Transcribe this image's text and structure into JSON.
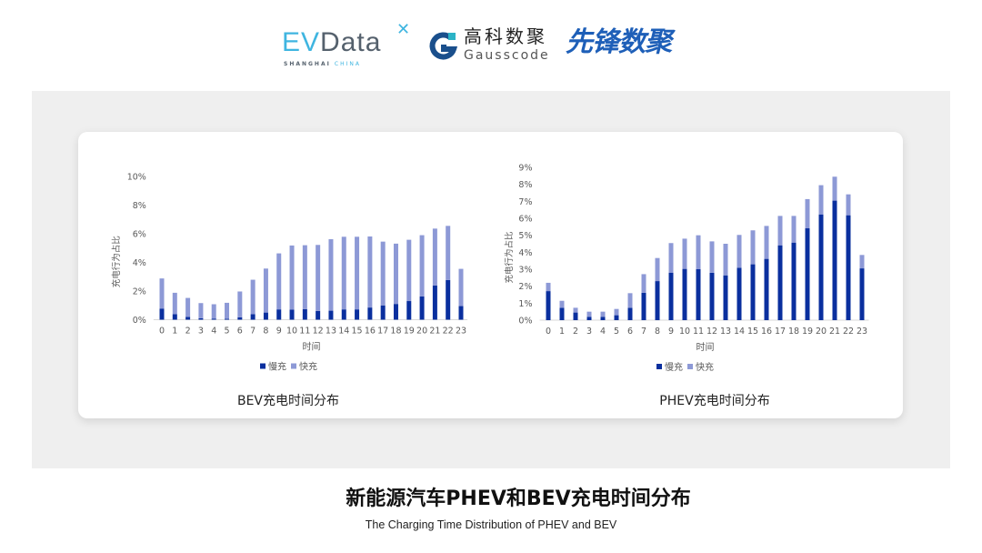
{
  "logos": {
    "evdata": {
      "text_a": "EV",
      "text_b": "Data",
      "sub_a": "SHANGHAI ",
      "sub_b": "CHINA"
    },
    "gausscode": {
      "cn": "高科数聚",
      "en": "Gausscode"
    },
    "xianfeng": {
      "cn": "先锋数聚"
    }
  },
  "colors": {
    "slow": "#0a2f9e",
    "fast": "#8d99d6",
    "panel": "#efefef",
    "axis_text": "#595959"
  },
  "footer": {
    "title": "新能源汽车PHEV和BEV充电时间分布",
    "subtitle": "The Charging Time Distribution of PHEV and BEV"
  },
  "chart_data": [
    {
      "type": "bar",
      "stacked": true,
      "title": "BEV充电时间分布",
      "xlabel": "时间",
      "ylabel": "充电行为占比",
      "categories": [
        "0",
        "1",
        "2",
        "3",
        "4",
        "5",
        "6",
        "7",
        "8",
        "9",
        "10",
        "11",
        "12",
        "13",
        "14",
        "15",
        "16",
        "17",
        "18",
        "19",
        "20",
        "21",
        "22",
        "23"
      ],
      "ylim": [
        0,
        10
      ],
      "yticks": [
        "0%",
        "2%",
        "4%",
        "6%",
        "8%",
        "10%"
      ],
      "ytick_values": [
        0,
        2,
        4,
        6,
        8,
        10
      ],
      "legend": "bottom",
      "grid": false,
      "series": [
        {
          "name": "慢充",
          "values": [
            0.78,
            0.38,
            0.2,
            0.1,
            0.08,
            0.06,
            0.17,
            0.38,
            0.5,
            0.72,
            0.7,
            0.74,
            0.61,
            0.63,
            0.72,
            0.72,
            0.85,
            1.0,
            1.1,
            1.3,
            1.63,
            2.39,
            2.77,
            0.95
          ]
        },
        {
          "name": "快充",
          "values": [
            2.1,
            1.5,
            1.32,
            1.06,
            1.0,
            1.12,
            1.8,
            2.41,
            3.07,
            3.91,
            4.48,
            4.46,
            4.61,
            4.99,
            5.07,
            5.07,
            4.96,
            4.45,
            4.21,
            4.28,
            4.27,
            3.97,
            3.78,
            2.6
          ]
        }
      ]
    },
    {
      "type": "bar",
      "stacked": true,
      "title": "PHEV充电时间分布",
      "xlabel": "时间",
      "ylabel": "充电行为占比",
      "categories": [
        "0",
        "1",
        "2",
        "3",
        "4",
        "5",
        "6",
        "7",
        "8",
        "9",
        "10",
        "11",
        "12",
        "13",
        "14",
        "15",
        "16",
        "17",
        "18",
        "19",
        "20",
        "21",
        "22",
        "23"
      ],
      "ylim": [
        0,
        9
      ],
      "yticks": [
        "0%",
        "1%",
        "2%",
        "3%",
        "4%",
        "5%",
        "6%",
        "7%",
        "8%",
        "9%"
      ],
      "ytick_values": [
        0,
        1,
        2,
        3,
        4,
        5,
        6,
        7,
        8,
        9
      ],
      "legend": "bottom",
      "grid": false,
      "series": [
        {
          "name": "慢充",
          "values": [
            1.71,
            0.73,
            0.45,
            0.2,
            0.2,
            0.29,
            0.73,
            1.61,
            2.3,
            2.8,
            3.02,
            3.0,
            2.79,
            2.64,
            3.09,
            3.29,
            3.61,
            4.41,
            4.57,
            5.41,
            6.23,
            7.04,
            6.18,
            3.05
          ]
        },
        {
          "name": "快充",
          "values": [
            0.49,
            0.41,
            0.28,
            0.3,
            0.3,
            0.37,
            0.86,
            1.1,
            1.36,
            1.74,
            1.78,
            2.0,
            1.85,
            1.86,
            1.93,
            2.0,
            1.94,
            1.73,
            1.57,
            1.72,
            1.72,
            1.41,
            1.23,
            0.79
          ]
        }
      ]
    }
  ]
}
